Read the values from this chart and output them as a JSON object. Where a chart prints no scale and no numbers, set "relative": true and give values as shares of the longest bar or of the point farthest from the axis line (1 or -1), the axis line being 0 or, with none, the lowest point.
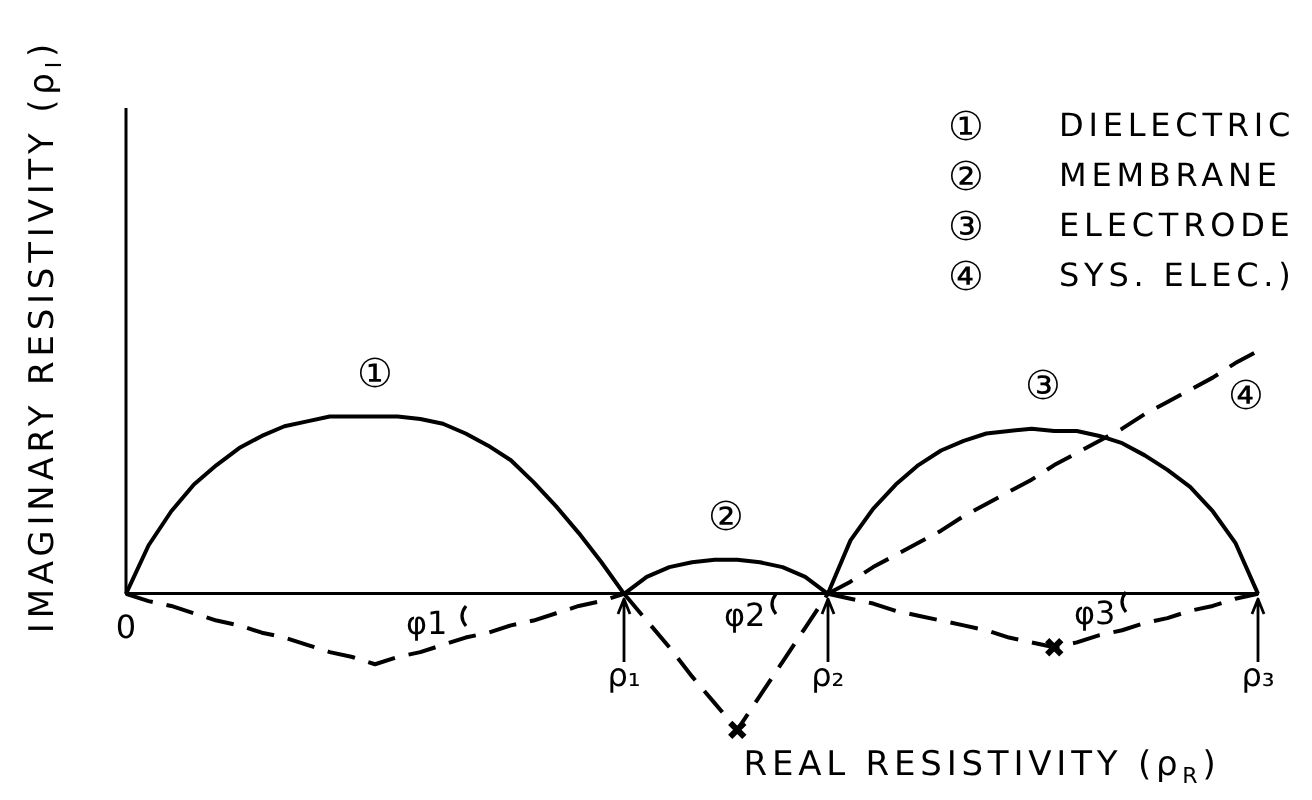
{
  "chart_data": {
    "type": "line",
    "relative": true,
    "marker": "none",
    "line_style": "solid",
    "xlabel": "REAL RESISTIVITY (ρ$_{R}$)",
    "ylabel": "IMAGINARY RESISTIVITY (ρ$_{I}$)",
    "categories": [
      "0",
      null,
      null,
      null,
      null,
      null,
      null,
      null,
      null,
      null,
      null,
      null,
      null,
      null,
      null,
      null,
      null,
      null,
      null,
      null,
      null,
      null,
      "ρ₁",
      null,
      null,
      null,
      null,
      null,
      null,
      null,
      null,
      "ρ₂",
      null,
      null,
      null,
      null,
      null,
      null,
      null,
      null,
      null,
      null,
      null,
      null,
      null,
      null,
      null,
      null,
      null,
      null,
      "ρ₃"
    ],
    "series": [
      {
        "name": "①",
        "color": "#000000",
        "values": [
          0,
          0.2,
          0.34,
          0.45,
          0.53,
          0.6,
          0.65,
          0.69,
          0.71,
          0.73,
          0.73,
          0.73,
          0.73,
          0.72,
          0.7,
          0.66,
          0.61,
          0.55,
          0.46,
          0.36,
          0.25,
          0.13,
          0,
          null,
          null,
          null,
          null,
          null,
          null,
          null,
          null,
          null,
          null,
          null,
          null,
          null,
          null,
          null,
          null,
          null,
          null,
          null,
          null,
          null,
          null,
          null,
          null,
          null,
          null,
          null,
          null
        ]
      },
      {
        "name": "②",
        "color": "#000000",
        "values": [
          null,
          null,
          null,
          null,
          null,
          null,
          null,
          null,
          null,
          null,
          null,
          null,
          null,
          null,
          null,
          null,
          null,
          null,
          null,
          null,
          null,
          null,
          0,
          0.07,
          0.11,
          0.13,
          0.14,
          0.14,
          0.13,
          0.11,
          0.07,
          0,
          null,
          null,
          null,
          null,
          null,
          null,
          null,
          null,
          null,
          null,
          null,
          null,
          null,
          null,
          null,
          null,
          null,
          null,
          null
        ]
      },
      {
        "name": "③",
        "color": "#000000",
        "values": [
          null,
          null,
          null,
          null,
          null,
          null,
          null,
          null,
          null,
          null,
          null,
          null,
          null,
          null,
          null,
          null,
          null,
          null,
          null,
          null,
          null,
          null,
          null,
          null,
          null,
          null,
          null,
          null,
          null,
          null,
          null,
          0,
          0.22,
          0.35,
          0.45,
          0.53,
          0.59,
          0.63,
          0.66,
          0.67,
          0.68,
          0.67,
          0.67,
          0.65,
          0.62,
          0.57,
          0.51,
          0.44,
          0.34,
          0.21,
          0
        ]
      },
      {
        "name": "④",
        "color": "#000000",
        "line_style": "dashed",
        "values": [
          null,
          null,
          null,
          null,
          null,
          null,
          null,
          null,
          null,
          null,
          null,
          null,
          null,
          null,
          null,
          null,
          null,
          null,
          null,
          null,
          null,
          null,
          null,
          null,
          null,
          null,
          null,
          null,
          null,
          null,
          null,
          0,
          0.05,
          0.11,
          0.16,
          0.21,
          0.26,
          0.32,
          0.37,
          0.42,
          0.47,
          0.53,
          0.58,
          0.63,
          0.68,
          0.74,
          0.79,
          0.84,
          0.89,
          0.95,
          1
        ]
      },
      {
        "color": "#000000",
        "line_style": "dashed",
        "values": [
          0,
          -0.03,
          -0.05,
          -0.08,
          -0.11,
          -0.13,
          -0.16,
          -0.18,
          -0.21,
          -0.24,
          -0.26,
          -0.29,
          -0.26,
          -0.24,
          -0.21,
          -0.18,
          -0.16,
          -0.13,
          -0.11,
          -0.08,
          -0.05,
          -0.03,
          0,
          null,
          null,
          null,
          null,
          null,
          null,
          null,
          null,
          null,
          null,
          null,
          null,
          null,
          null,
          null,
          null,
          null,
          null,
          null,
          null,
          null,
          null,
          null,
          null,
          null,
          null,
          null,
          null
        ]
      },
      {
        "color": "#000000",
        "line_style": "dashed",
        "values": [
          null,
          null,
          null,
          null,
          null,
          null,
          null,
          null,
          null,
          null,
          null,
          null,
          null,
          null,
          null,
          null,
          null,
          null,
          null,
          null,
          null,
          null,
          0,
          -0.11,
          -0.22,
          -0.34,
          -0.45,
          -0.56,
          -0.42,
          -0.28,
          -0.14,
          0,
          null,
          null,
          null,
          null,
          null,
          null,
          null,
          null,
          null,
          null,
          null,
          null,
          null,
          null,
          null,
          null,
          null,
          null,
          null
        ]
      },
      {
        "color": "#000000",
        "line_style": "dashed",
        "values": [
          null,
          null,
          null,
          null,
          null,
          null,
          null,
          null,
          null,
          null,
          null,
          null,
          null,
          null,
          null,
          null,
          null,
          null,
          null,
          null,
          null,
          null,
          null,
          null,
          null,
          null,
          null,
          null,
          null,
          null,
          null,
          0,
          -0.02,
          -0.04,
          -0.07,
          -0.09,
          -0.11,
          -0.13,
          -0.15,
          -0.18,
          -0.2,
          -0.22,
          -0.2,
          -0.17,
          -0.15,
          -0.12,
          -0.1,
          -0.07,
          -0.05,
          -0.02,
          0
        ]
      },
      {
        "type": "scatter",
        "marker": "cross",
        "color": "#000000",
        "values": [
          null,
          null,
          null,
          null,
          null,
          null,
          null,
          null,
          null,
          null,
          null,
          null,
          null,
          null,
          null,
          null,
          null,
          null,
          null,
          null,
          null,
          null,
          null,
          null,
          null,
          null,
          null,
          -0.56,
          null,
          null,
          null,
          null,
          null,
          null,
          null,
          null,
          null,
          null,
          null,
          null,
          null,
          -0.22,
          null,
          null,
          null,
          null,
          null,
          null,
          null,
          null,
          null
        ]
      }
    ],
    "annotations": [
      "① DIELECTRIC",
      "② MEMBRANE",
      "③ ELECTRODE",
      "④ SYS. ELEC.)",
      "φ1",
      "φ2",
      "φ3"
    ]
  }
}
